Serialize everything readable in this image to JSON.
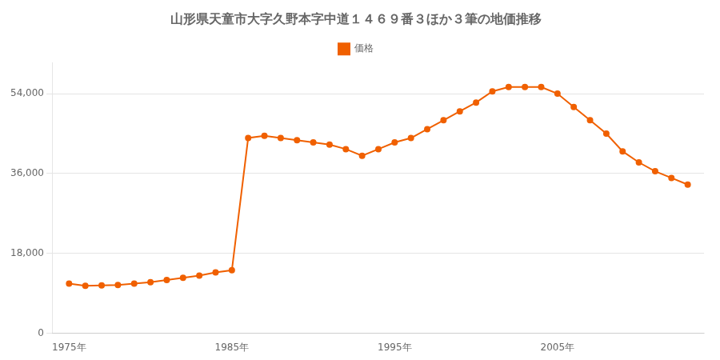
{
  "chart_data": {
    "type": "line",
    "title": "山形県天童市大字久野本字中道１４６９番３ほか３筆の地価推移",
    "series": [
      {
        "name": "価格",
        "color": "#f06000",
        "marker": "circle",
        "values": [
          11200,
          10700,
          10800,
          10900,
          11200,
          11500,
          12000,
          12500,
          13000,
          13700,
          14200,
          44000,
          44500,
          44000,
          43500,
          43000,
          42500,
          41500,
          40000,
          41500,
          43000,
          44000,
          46000,
          48000,
          50000,
          52000,
          54500,
          55500,
          55500,
          55500,
          54000,
          51000,
          48000,
          45000,
          41000,
          38500,
          36500,
          35000,
          33500
        ]
      }
    ],
    "x": [
      1975,
      1976,
      1977,
      1978,
      1979,
      1980,
      1981,
      1982,
      1983,
      1984,
      1985,
      1986,
      1987,
      1988,
      1989,
      1990,
      1991,
      1992,
      1993,
      1994,
      1995,
      1996,
      1997,
      1998,
      1999,
      2000,
      2001,
      2002,
      2003,
      2004,
      2005,
      2006,
      2007,
      2008,
      2009,
      2010,
      2011,
      2012,
      2013
    ],
    "xlim": [
      1974,
      2014
    ],
    "xticks": [
      {
        "value": 1975,
        "label": "1975年"
      },
      {
        "value": 1985,
        "label": "1985年"
      },
      {
        "value": 1995,
        "label": "1995年"
      },
      {
        "value": 2005,
        "label": "2005年"
      }
    ],
    "ylim": [
      0,
      61000
    ],
    "yticks": [
      0,
      {
        "value": 18000,
        "label": "18,000"
      },
      {
        "value": 36000,
        "label": "36,000"
      },
      {
        "value": 54000,
        "label": "54,000"
      }
    ],
    "grid": "y",
    "legend": "top"
  }
}
